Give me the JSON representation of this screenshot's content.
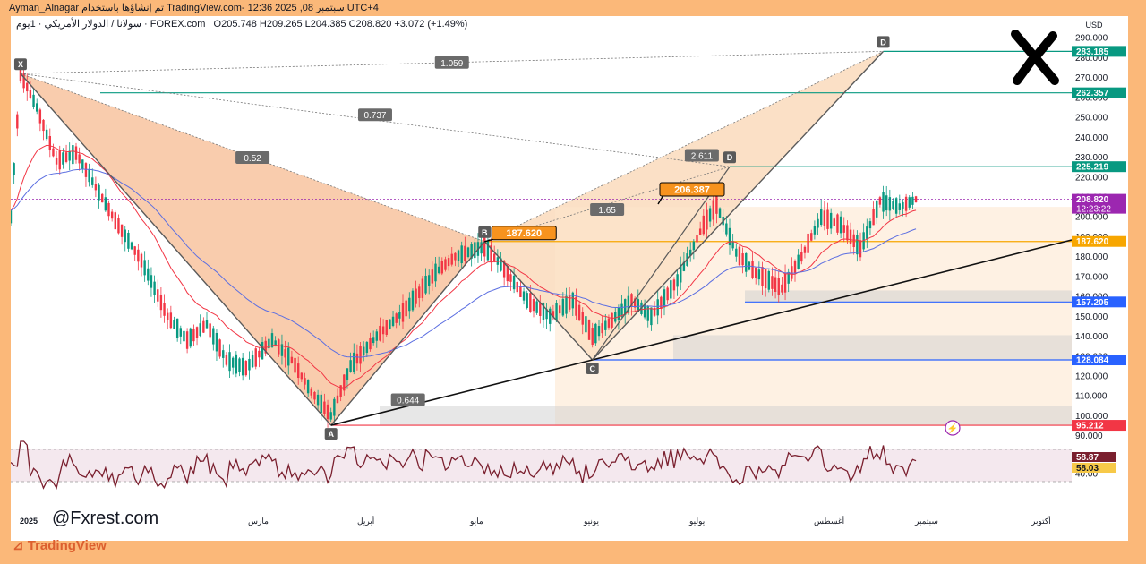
{
  "header": {
    "top_left": "Ayman_Alnagar تم إنشاؤها باستخدام TradingView.com- 12:36 2025 ,08 سبتمبر UTC+4",
    "symbol_line": "سولانا / الدولار الأمريكي · 1يوم · FOREX.com",
    "ohlc": "O205.748 H209.265 L204.385 C208.820 +3.072 (+1.49%)"
  },
  "chart_data": {
    "type": "candlestick",
    "price_axis": {
      "currency": "USD",
      "ticks": [
        "290.000",
        "280.000",
        "270.000",
        "260.000",
        "250.000",
        "240.000",
        "230.000",
        "220.000",
        "210.000",
        "200.000",
        "190.000",
        "180.000",
        "170.000",
        "160.000",
        "150.000",
        "140.000",
        "130.000",
        "120.000",
        "110.000",
        "100.000",
        "90.000"
      ],
      "ylim": [
        86,
        294
      ]
    },
    "time_axis": {
      "labels": [
        "2025",
        "مارس",
        "أبريل",
        "مايو",
        "يونيو",
        "يوليو",
        "أغسطس",
        "سبتمبر",
        "أكتوبر"
      ]
    },
    "price_tags": [
      {
        "value": "283.185",
        "color": "#089981"
      },
      {
        "value": "262.357",
        "color": "#089981"
      },
      {
        "value": "225.219",
        "color": "#089981"
      },
      {
        "value": "208.820",
        "countdown": "12:23:22",
        "color": "#9c27b0"
      },
      {
        "value": "187.620",
        "color": "#f7a600"
      },
      {
        "value": "157.205",
        "color": "#2962ff"
      },
      {
        "value": "128.084",
        "color": "#2962ff"
      },
      {
        "value": "95.212",
        "color": "#f23645"
      }
    ],
    "pattern_points": [
      {
        "label": "X",
        "date_index": 3,
        "price": 272
      },
      {
        "label": "A",
        "date_index": 98,
        "price": 95.2
      },
      {
        "label": "B",
        "date_index": 145,
        "price": 187.6
      },
      {
        "label": "C",
        "date_index": 178,
        "price": 128.1
      },
      {
        "label": "D",
        "date_index": 267,
        "price": 283.2
      },
      {
        "label": "D",
        "date_index": 220,
        "price": 225.2
      }
    ],
    "ratios": [
      "1.059",
      "0.737",
      "0.52",
      "2.611",
      "1.65",
      "0.644"
    ],
    "callouts": [
      {
        "label": "187.620"
      },
      {
        "label": "206.387"
      }
    ],
    "rsi": {
      "value_1": "58.87",
      "value_2": "58.03",
      "tick": "40.00"
    }
  },
  "watermark": "@Fxrest.com",
  "logo": "TradingView"
}
